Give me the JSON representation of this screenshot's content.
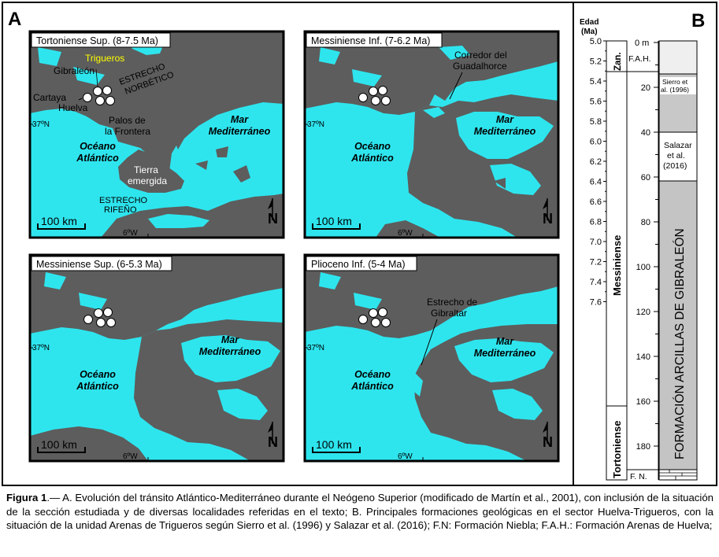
{
  "figure": {
    "panel_a_letter": "A",
    "panel_b_letter": "B",
    "maps": [
      {
        "title": "Tortoniense Sup. (8-7.5 Ma)",
        "lat_label": "37ºN",
        "lon_label": "6ºW",
        "scale_label": "100 km",
        "north_label": "N",
        "ocean_label": [
          "Océano",
          "Atlántico"
        ],
        "sea_label": [
          "Mar",
          "Mediterráneo"
        ],
        "extra_labels": {
          "trigueros": "Trigueros",
          "gibraleon": "Gibraleón",
          "cartaya": "Cartaya",
          "huelva": "Huelva",
          "palos": [
            "Palos de",
            "la Frontera"
          ],
          "norbetico": [
            "ESTRECHO",
            "NORBÉTICO"
          ],
          "tierra": [
            "Tierra",
            "emergida"
          ],
          "rifeno": [
            "ESTRECHO",
            "RIFEÑO"
          ]
        }
      },
      {
        "title": "Messiniense Inf. (7-6.2 Ma)",
        "lat_label": "37ºN",
        "lon_label": "6ºW",
        "scale_label": "100 km",
        "north_label": "N",
        "ocean_label": [
          "Océano",
          "Atlántico"
        ],
        "sea_label": [
          "Mar",
          "Mediterráneo"
        ],
        "extra_labels": {
          "corredor": [
            "Corredor del",
            "Guadalhorce"
          ]
        }
      },
      {
        "title": "Messiniense Sup. (6-5.3 Ma)",
        "lat_label": "37ºN",
        "lon_label": "6ºW",
        "scale_label": "100 km",
        "north_label": "N",
        "ocean_label": [
          "Océano",
          "Atlántico"
        ],
        "sea_label": [
          "Mar",
          "Mediterráneo"
        ]
      },
      {
        "title": "Plioceno Inf. (5-4 Ma)",
        "lat_label": "37ºN",
        "lon_label": "6ºW",
        "scale_label": "100 km",
        "north_label": "N",
        "ocean_label": [
          "Océano",
          "Atlántico"
        ],
        "sea_label": [
          "Mar",
          "Mediterráneo"
        ],
        "extra_labels": {
          "gibraltar": [
            "Estrecho de",
            "Gibraltar"
          ]
        }
      }
    ],
    "column": {
      "age_header": [
        "Edad",
        "(Ma)"
      ],
      "age_ticks": [
        "5.0",
        "5.2",
        "5.4",
        "5.6",
        "5.8",
        "6.0",
        "6.2",
        "6.4",
        "6.6",
        "6.8",
        "7.0",
        "7.2",
        "7.4",
        "7.6"
      ],
      "depth_ticks": [
        "0 m",
        "20",
        "40",
        "60",
        "80",
        "100",
        "120",
        "140",
        "160",
        "180"
      ],
      "stages": [
        "Zan.",
        "Messiniense",
        "Tortoniense"
      ],
      "formations": {
        "fah": "F.A.H.",
        "fn": "F. N.",
        "sierro": [
          "Sierro et",
          "al. (1996)"
        ],
        "salazar": [
          "Salazar",
          "et al.",
          "(2016)"
        ],
        "arcillas": "FORMACIÓN ARCILLAS DE GIBRALEÓN"
      }
    },
    "colors": {
      "sea": "#2ee5ee",
      "land": "#5d5d5d",
      "gibraleon_fill": "#c4c4c4",
      "sierro_fill": "#c8c8c8",
      "fah_fill": "#efefef",
      "trigueros_text": "#ffff00"
    }
  },
  "caption": {
    "label": "Figura 1",
    "text": ".— A. Evolución del tránsito Atlántico-Mediterráneo durante el Neógeno Superior (modificado de Martín et al., 2001), con inclusión de la situación de la sección estudiada y de diversas localidades referidas en el texto; B. Principales formaciones geológicas en el sector Huelva-Trigueros, con la situación de la unidad Arenas de Trigueros según Sierro et al. (1996) y Salazar et al. (2016); F.N: Formación Niebla; F.A.H.: Formación Arenas de Huelva;"
  }
}
